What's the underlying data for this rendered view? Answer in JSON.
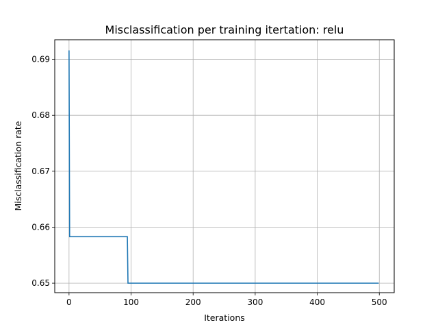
{
  "chart_data": {
    "type": "line",
    "title": "Misclassification per training itertation: relu",
    "xlabel": "Iterations",
    "ylabel": "Misclassification rate",
    "xlim": [
      -23,
      524
    ],
    "ylim": [
      0.6483,
      0.6935
    ],
    "xticks": [
      0,
      100,
      200,
      300,
      400,
      500
    ],
    "xtick_labels": [
      "0",
      "100",
      "200",
      "300",
      "400",
      "500"
    ],
    "yticks": [
      0.65,
      0.66,
      0.67,
      0.68,
      0.69
    ],
    "ytick_labels": [
      "0.65",
      "0.66",
      "0.67",
      "0.68",
      "0.69"
    ],
    "grid": true,
    "series": [
      {
        "color": "#1f77b4",
        "x": [
          0,
          1,
          94,
          95,
          499
        ],
        "y": [
          0.6916,
          0.6583,
          0.6583,
          0.65,
          0.65
        ]
      }
    ]
  }
}
